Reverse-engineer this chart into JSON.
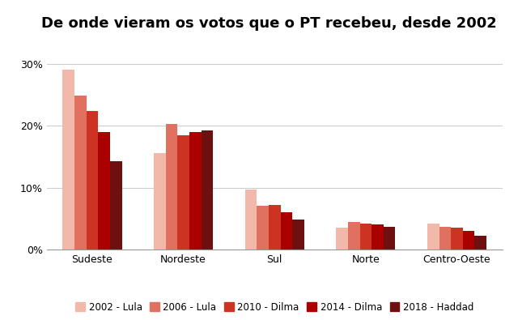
{
  "title": "De onde vieram os votos que o PT recebeu, desde 2002",
  "categories": [
    "Sudeste",
    "Nordeste",
    "Sul",
    "Norte",
    "Centro-Oeste"
  ],
  "series_order": [
    "2002 - Lula",
    "2006 - Lula",
    "2010 - Dilma",
    "2014 - Dilma",
    "2018 - Haddad"
  ],
  "series": {
    "2002 - Lula": [
      0.29,
      0.155,
      0.097,
      0.036,
      0.042
    ],
    "2006 - Lula": [
      0.248,
      0.203,
      0.071,
      0.044,
      0.037
    ],
    "2010 - Dilma": [
      0.224,
      0.185,
      0.072,
      0.042,
      0.035
    ],
    "2014 - Dilma": [
      0.189,
      0.189,
      0.06,
      0.04,
      0.03
    ],
    "2018 - Haddad": [
      0.143,
      0.192,
      0.048,
      0.037,
      0.022
    ]
  },
  "colors": {
    "2002 - Lula": "#f2b8aa",
    "2006 - Lula": "#e07060",
    "2010 - Dilma": "#cc3322",
    "2014 - Dilma": "#aa0000",
    "2018 - Haddad": "#6e1010"
  },
  "ylim": [
    0,
    0.32
  ],
  "yticks": [
    0.0,
    0.1,
    0.2,
    0.3
  ],
  "ytick_labels": [
    "0%",
    "10%",
    "20%",
    "30%"
  ],
  "background_color": "#ffffff",
  "title_fontsize": 13,
  "tick_fontsize": 9,
  "legend_fontsize": 8.5,
  "bar_width": 0.13,
  "grid_color": "#cccccc"
}
